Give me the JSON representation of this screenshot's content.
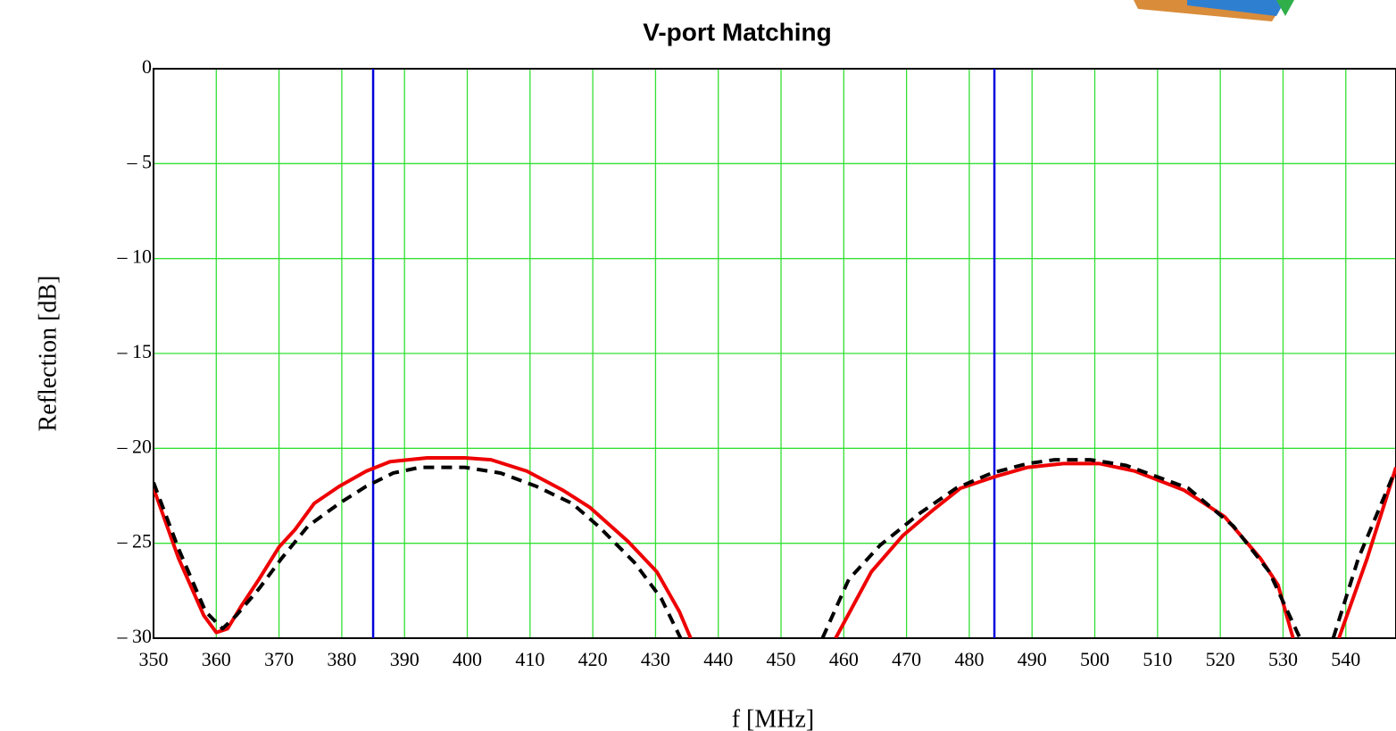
{
  "chart_data": {
    "type": "line",
    "title": "V-port Matching",
    "x_label": "f [MHz]",
    "y_label": "Reflection [dB]",
    "xlim": [
      350,
      548
    ],
    "xticks": [
      350,
      360,
      370,
      380,
      390,
      400,
      410,
      420,
      430,
      440,
      450,
      460,
      470,
      480,
      490,
      500,
      510,
      520,
      530,
      540
    ],
    "ylim": [
      -30,
      0
    ],
    "yticks": [
      {
        "value": -30,
        "label": "– 30"
      },
      {
        "value": -25,
        "label": "– 25"
      },
      {
        "value": -20,
        "label": "– 20"
      },
      {
        "value": -15,
        "label": "– 15"
      },
      {
        "value": -10,
        "label": "– 10"
      },
      {
        "value": -5,
        "label": "– 5"
      },
      0
    ],
    "grid": true,
    "grid_color": "#33e033",
    "markers": {
      "color": "#0000dd",
      "x": [
        385,
        484
      ]
    },
    "series": [
      {
        "color": "#ee0000",
        "style": "solid",
        "x": [
          350,
          354,
          358,
          360,
          361.8,
          364,
          366.8,
          370,
          372.5,
          375.6,
          379.6,
          383.9,
          387.7,
          393.6,
          399.6,
          403.8,
          409.5,
          415.2,
          419.5,
          425.6,
          430.2,
          433.8,
          435.6,
          null,
          458.7,
          464.4,
          469.4,
          474.4,
          478.6,
          484,
          489.3,
          495,
          500.7,
          506.4,
          514.2,
          520.7,
          526.4,
          529.2,
          531.6,
          null,
          538.9,
          543.4,
          548
        ],
        "values": [
          -22.1,
          -25.8,
          -28.8,
          -29.7,
          -29.5,
          -28.3,
          -26.9,
          -25.2,
          -24.3,
          -22.9,
          -22.0,
          -21.2,
          -20.7,
          -20.5,
          -20.5,
          -20.6,
          -21.2,
          -22.2,
          -23.1,
          -24.9,
          -26.5,
          -28.6,
          -30,
          null,
          -30,
          -26.5,
          -24.6,
          -23.2,
          -22.1,
          -21.5,
          -21.0,
          -20.8,
          -20.8,
          -21.2,
          -22.2,
          -23.6,
          -25.8,
          -27.2,
          -30,
          null,
          -30,
          -25.8,
          -21
        ]
      },
      {
        "color": "#000000",
        "style": "dashed",
        "x": [
          350,
          354,
          358.3,
          361,
          363.2,
          366.8,
          370.4,
          374.6,
          379.6,
          383.9,
          388.2,
          392.5,
          399.6,
          405.3,
          411,
          416.7,
          420.9,
          426.6,
          430.9,
          434,
          null,
          456.6,
          460.8,
          465.8,
          472.2,
          477.9,
          483.6,
          489.3,
          493.6,
          499.3,
          505,
          514.9,
          522.1,
          527.8,
          532.7,
          null,
          538,
          542,
          547.7
        ],
        "values": [
          -21.8,
          -25.3,
          -28.6,
          -29.5,
          -28.8,
          -27.4,
          -25.8,
          -24.1,
          -22.9,
          -22.0,
          -21.3,
          -21.0,
          -21.0,
          -21.3,
          -22.0,
          -22.9,
          -24.1,
          -26.0,
          -27.9,
          -30,
          null,
          -30,
          -26.9,
          -25.1,
          -23.4,
          -22.1,
          -21.3,
          -20.8,
          -20.6,
          -20.6,
          -20.9,
          -22.1,
          -24.1,
          -26.5,
          -30,
          null,
          -30,
          -25.8,
          -21.3
        ]
      }
    ]
  }
}
